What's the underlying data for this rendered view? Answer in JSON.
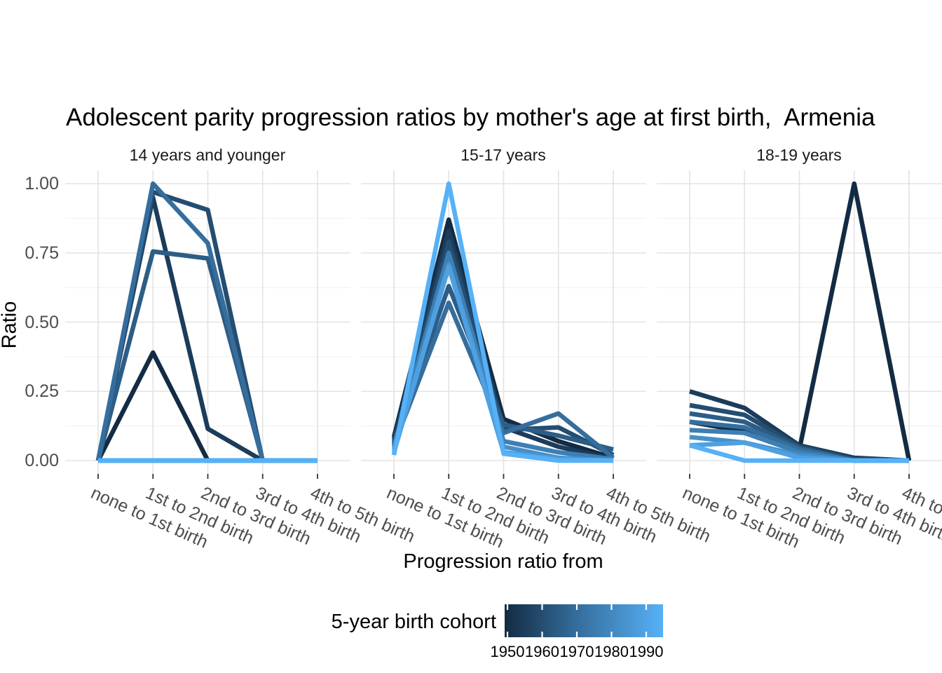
{
  "title": "Adolescent parity progression ratios by mother's age at first birth,  Armenia",
  "legend": {
    "title": "5-year birth cohort",
    "labels": [
      "1950",
      "1960",
      "1970",
      "1980",
      "1990"
    ],
    "gradient_low": "#132B43",
    "gradient_mid": "#356E9D",
    "gradient_high": "#56B1F7",
    "tick_color": "#ffffff"
  },
  "chart_data": {
    "type": "line",
    "title": "Adolescent parity progression ratios by mother's age at first birth,  Armenia",
    "xlabel": "Progression ratio from",
    "ylabel": "Ratio",
    "legend_title": "5-year birth cohort",
    "legend_position": "bottom",
    "grid": true,
    "ylim": [
      0,
      1
    ],
    "y_ticks": [
      "1.00",
      "0.75",
      "0.50",
      "0.25",
      "0.00"
    ],
    "y_tick_values": [
      1.0,
      0.75,
      0.5,
      0.25,
      0.0
    ],
    "y_minor_values": [
      0.875,
      0.625,
      0.375,
      0.125
    ],
    "categories": [
      "none to 1st birth",
      "1st to 2nd birth",
      "2nd to 3rd birth",
      "3rd to 4th birth",
      "4th to 5th birth"
    ],
    "facets": [
      {
        "label": "14 years and younger",
        "series": [
          {
            "name": "1950",
            "color": "#132B43",
            "values": [
              0,
              0.39,
              0,
              0,
              0
            ]
          },
          {
            "name": "1955",
            "color": "#1B3C5A",
            "values": [
              0,
              0.95,
              0.115,
              0,
              0
            ]
          },
          {
            "name": "1960",
            "color": "#244D70",
            "values": [
              0,
              0.97,
              0.905,
              0,
              0
            ]
          },
          {
            "name": "1965",
            "color": "#2C5D86",
            "values": [
              0,
              0.755,
              0.73,
              0,
              0
            ]
          },
          {
            "name": "1970",
            "color": "#356E9D",
            "values": [
              0,
              1.0,
              0.785,
              0,
              0
            ]
          },
          {
            "name": "1975",
            "color": "#3D7FB4",
            "values": [
              0,
              0,
              0,
              0,
              0
            ]
          },
          {
            "name": "1980",
            "color": "#4590CA",
            "values": [
              0,
              0,
              0,
              0,
              0
            ]
          },
          {
            "name": "1985",
            "color": "#4EA0E1",
            "values": [
              0,
              0,
              0,
              0,
              0
            ]
          },
          {
            "name": "1990",
            "color": "#56B1F7",
            "values": [
              0,
              0,
              0,
              0,
              0
            ]
          }
        ]
      },
      {
        "label": "15-17 years",
        "series": [
          {
            "name": "1950",
            "color": "#132B43",
            "values": [
              0.085,
              0.87,
              0.15,
              0.07,
              0.01
            ]
          },
          {
            "name": "1955",
            "color": "#1B3C5A",
            "values": [
              0.075,
              0.83,
              0.12,
              0.05,
              0.005
            ]
          },
          {
            "name": "1960",
            "color": "#244D70",
            "values": [
              0.065,
              0.79,
              0.11,
              0.12,
              0.02
            ]
          },
          {
            "name": "1965",
            "color": "#2C5D86",
            "values": [
              0.06,
              0.63,
              0.13,
              0.09,
              0.04
            ]
          },
          {
            "name": "1970",
            "color": "#356E9D",
            "values": [
              0.055,
              0.57,
              0.1,
              0.17,
              0.01
            ]
          },
          {
            "name": "1975",
            "color": "#3D7FB4",
            "values": [
              0.05,
              0.75,
              0.07,
              0.03,
              0.005
            ]
          },
          {
            "name": "1980",
            "color": "#4590CA",
            "values": [
              0.04,
              0.71,
              0.05,
              0.01,
              0
            ]
          },
          {
            "name": "1985",
            "color": "#4EA0E1",
            "values": [
              0.03,
              0.7,
              0.03,
              0.005,
              0
            ]
          },
          {
            "name": "1990",
            "color": "#56B1F7",
            "values": [
              0.02,
              1.0,
              0.025,
              0,
              0
            ]
          }
        ]
      },
      {
        "label": "18-19 years",
        "series": [
          {
            "name": "1950",
            "color": "#132B43",
            "values": [
              0.14,
              0.105,
              0.04,
              1.0,
              0
            ]
          },
          {
            "name": "1955",
            "color": "#1B3C5A",
            "values": [
              0.25,
              0.19,
              0.055,
              0.01,
              0
            ]
          },
          {
            "name": "1960",
            "color": "#244D70",
            "values": [
              0.2,
              0.165,
              0.05,
              0.005,
              0
            ]
          },
          {
            "name": "1965",
            "color": "#2C5D86",
            "values": [
              0.17,
              0.14,
              0.045,
              0,
              0
            ]
          },
          {
            "name": "1970",
            "color": "#356E9D",
            "values": [
              0.14,
              0.12,
              0.04,
              0,
              0
            ]
          },
          {
            "name": "1975",
            "color": "#3D7FB4",
            "values": [
              0.11,
              0.1,
              0.03,
              0,
              0
            ]
          },
          {
            "name": "1980",
            "color": "#4590CA",
            "values": [
              0.085,
              0.065,
              0.02,
              0,
              0
            ]
          },
          {
            "name": "1985",
            "color": "#4EA0E1",
            "values": [
              0.055,
              0.065,
              0.01,
              0,
              0
            ]
          },
          {
            "name": "1990",
            "color": "#56B1F7",
            "values": [
              0.055,
              0,
              0,
              0,
              0
            ]
          }
        ]
      }
    ]
  }
}
